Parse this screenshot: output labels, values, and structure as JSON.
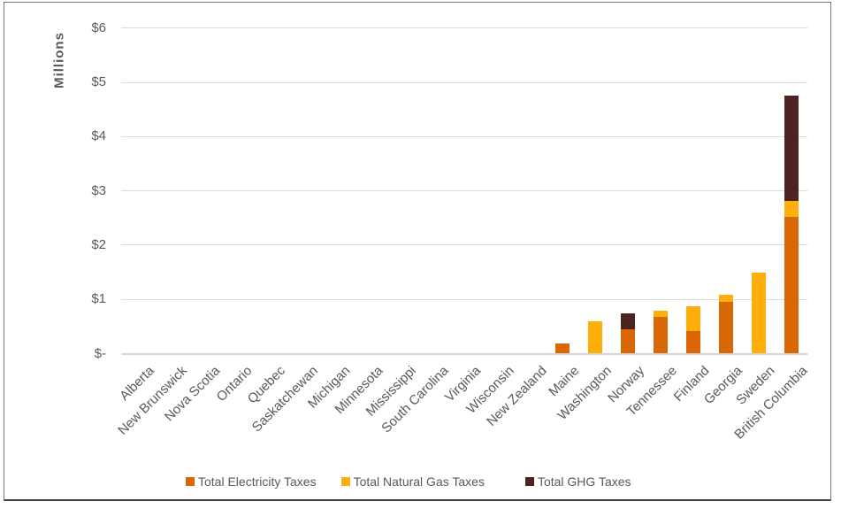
{
  "chart_data": {
    "type": "bar",
    "stacked": true,
    "title": "",
    "xlabel": "",
    "ylabel": "Millions",
    "ylim": [
      0,
      6
    ],
    "grid": true,
    "legend_position": "bottom",
    "ytick_labels": [
      "$-",
      "$1",
      "$2",
      "$3",
      "$4",
      "$5",
      "$6"
    ],
    "categories": [
      "Alberta",
      "New Brunswick",
      "Nova Scotia",
      "Ontario",
      "Quebec",
      "Saskatchewan",
      "Michigan",
      "Minnesota",
      "Mississippi",
      "South Carolina",
      "Virginia",
      "Wisconsin",
      "New Zealand",
      "Maine",
      "Washington",
      "Norway",
      "Tennessee",
      "Finland",
      "Georgia",
      "Sweden",
      "British Columbia"
    ],
    "series": [
      {
        "name": "Total Electricity Taxes",
        "color": "#D96704",
        "values": [
          0,
          0,
          0,
          0,
          0,
          0,
          0,
          0,
          0,
          0,
          0,
          0,
          0,
          0.18,
          0,
          0.45,
          0.67,
          0.41,
          0.95,
          0,
          2.52
        ]
      },
      {
        "name": "Total Natural Gas Taxes",
        "color": "#FFAE0A",
        "values": [
          0,
          0,
          0,
          0,
          0,
          0,
          0,
          0,
          0,
          0,
          0,
          0,
          0,
          0,
          0.6,
          0,
          0.12,
          0.46,
          0.13,
          1.5,
          0.29
        ]
      },
      {
        "name": "Total GHG Taxes",
        "color": "#4C2422",
        "values": [
          0,
          0,
          0,
          0,
          0,
          0,
          0,
          0,
          0,
          0,
          0,
          0,
          0,
          0,
          0,
          0.3,
          0,
          0,
          0,
          0,
          1.94
        ]
      }
    ]
  }
}
